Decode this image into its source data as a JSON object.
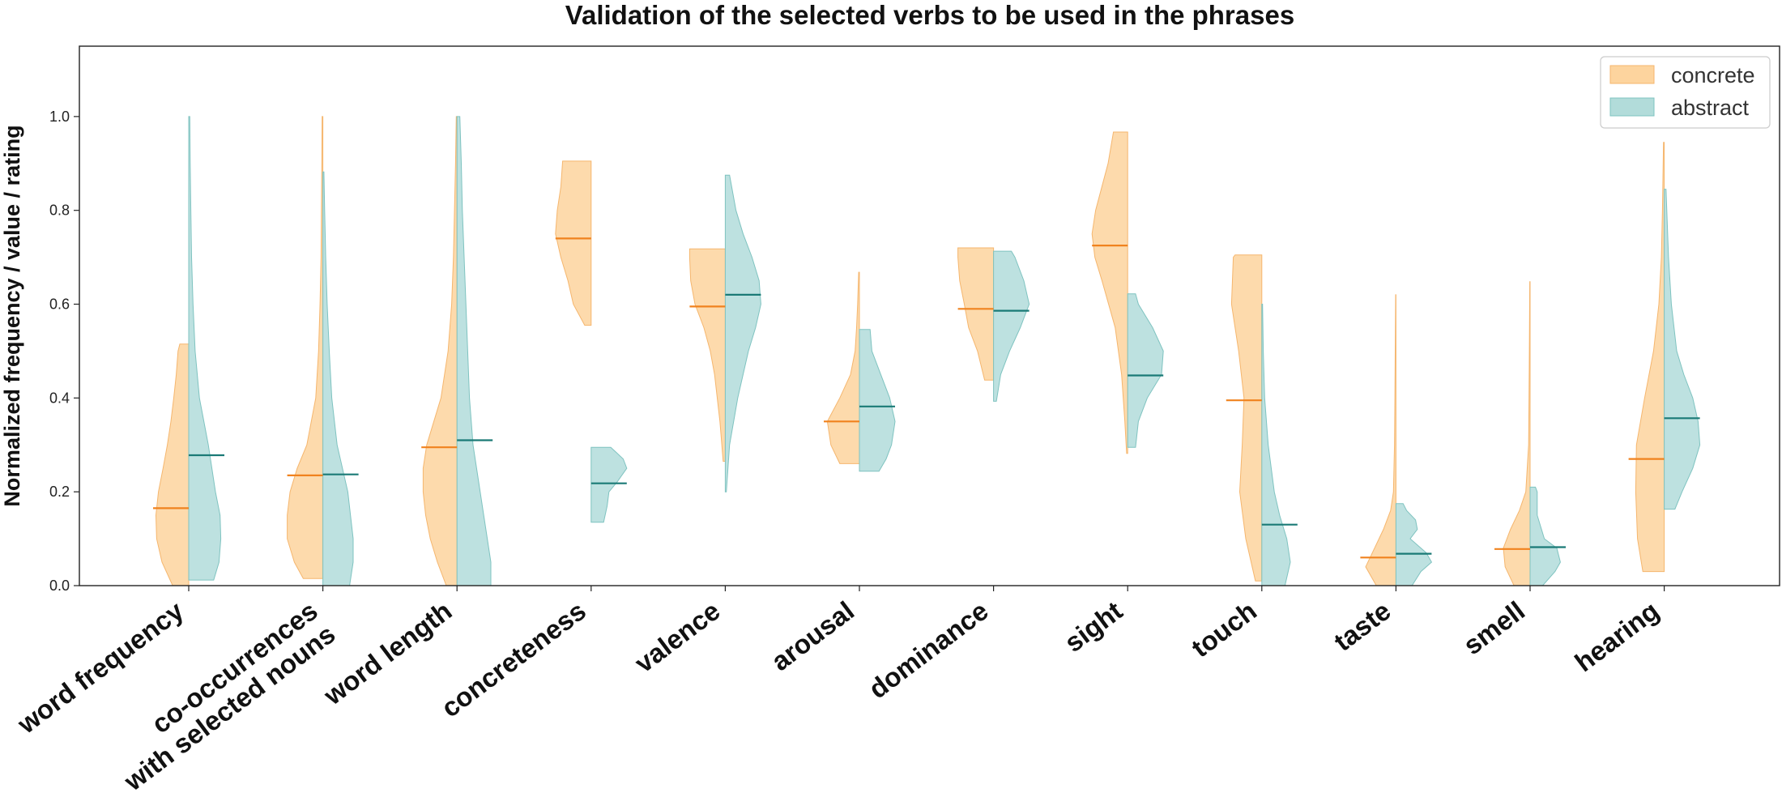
{
  "chart_data": {
    "type": "violin",
    "title": "Validation of the selected verbs to be used in the phrases",
    "xlabel": "",
    "ylabel": "Normalized frequency / value / rating",
    "ylim": [
      0,
      1.15
    ],
    "yticks": [
      0.0,
      0.2,
      0.4,
      0.6,
      0.8,
      1.0
    ],
    "ytick_labels": [
      "0.0",
      "0.2",
      "0.4",
      "0.6",
      "0.8",
      "1.0"
    ],
    "grid": false,
    "legend_position": "top-right",
    "categories": [
      "word frequency",
      "co-occurrences\nwith selected nouns",
      "word length",
      "concreteness",
      "valence",
      "arousal",
      "dominance",
      "sight",
      "touch",
      "taste",
      "smell",
      "hearing"
    ],
    "series": [
      {
        "name": "concrete",
        "color": "#FDD49E",
        "edge_color": "#F5B66E",
        "median_color": "#F0821E",
        "side": "left",
        "medians": [
          0.165,
          0.235,
          0.295,
          0.74,
          0.595,
          0.35,
          0.59,
          0.725,
          0.395,
          0.06,
          0.078,
          0.27
        ],
        "ranges": [
          [
            0.0,
            0.515
          ],
          [
            0.015,
            1.0
          ],
          [
            0.0,
            1.0
          ],
          [
            0.555,
            0.905
          ],
          [
            0.265,
            0.718
          ],
          [
            0.26,
            0.668
          ],
          [
            0.438,
            0.72
          ],
          [
            0.282,
            0.967
          ],
          [
            0.01,
            0.705
          ],
          [
            0.0,
            0.62
          ],
          [
            0.0,
            0.648
          ],
          [
            0.03,
            0.945
          ]
        ],
        "profiles": [
          [
            [
              0,
              0.45
            ],
            [
              0.05,
              0.75
            ],
            [
              0.1,
              0.9
            ],
            [
              0.15,
              0.92
            ],
            [
              0.2,
              0.85
            ],
            [
              0.25,
              0.72
            ],
            [
              0.3,
              0.6
            ],
            [
              0.35,
              0.5
            ],
            [
              0.4,
              0.42
            ],
            [
              0.45,
              0.35
            ],
            [
              0.5,
              0.3
            ],
            [
              0.515,
              0.25
            ]
          ],
          [
            [
              0.015,
              0.55
            ],
            [
              0.05,
              0.8
            ],
            [
              0.1,
              1.0
            ],
            [
              0.15,
              1.0
            ],
            [
              0.2,
              0.92
            ],
            [
              0.25,
              0.72
            ],
            [
              0.3,
              0.45
            ],
            [
              0.4,
              0.2
            ],
            [
              0.5,
              0.12
            ],
            [
              0.6,
              0.08
            ],
            [
              0.7,
              0.05
            ],
            [
              0.8,
              0.04
            ],
            [
              0.9,
              0.03
            ],
            [
              1.0,
              0.02
            ]
          ],
          [
            [
              0,
              0.3
            ],
            [
              0.05,
              0.55
            ],
            [
              0.1,
              0.75
            ],
            [
              0.15,
              0.88
            ],
            [
              0.2,
              0.95
            ],
            [
              0.25,
              0.95
            ],
            [
              0.3,
              0.85
            ],
            [
              0.35,
              0.65
            ],
            [
              0.4,
              0.45
            ],
            [
              0.5,
              0.25
            ],
            [
              0.6,
              0.15
            ],
            [
              0.7,
              0.1
            ],
            [
              0.8,
              0.07
            ],
            [
              0.9,
              0.04
            ],
            [
              1.0,
              0.02
            ]
          ],
          [
            [
              0.555,
              0.18
            ],
            [
              0.6,
              0.5
            ],
            [
              0.65,
              0.65
            ],
            [
              0.7,
              0.85
            ],
            [
              0.75,
              1.0
            ],
            [
              0.8,
              0.95
            ],
            [
              0.85,
              0.85
            ],
            [
              0.905,
              0.8
            ]
          ],
          [
            [
              0.265,
              0.06
            ],
            [
              0.35,
              0.15
            ],
            [
              0.45,
              0.3
            ],
            [
              0.5,
              0.42
            ],
            [
              0.55,
              0.6
            ],
            [
              0.6,
              0.85
            ],
            [
              0.65,
              0.97
            ],
            [
              0.7,
              1.0
            ],
            [
              0.718,
              1.0
            ]
          ],
          [
            [
              0.26,
              0.55
            ],
            [
              0.3,
              0.8
            ],
            [
              0.35,
              0.9
            ],
            [
              0.4,
              0.55
            ],
            [
              0.45,
              0.25
            ],
            [
              0.5,
              0.12
            ],
            [
              0.55,
              0.08
            ],
            [
              0.6,
              0.05
            ],
            [
              0.668,
              0.02
            ]
          ],
          [
            [
              0.438,
              0.25
            ],
            [
              0.5,
              0.45
            ],
            [
              0.55,
              0.7
            ],
            [
              0.6,
              0.82
            ],
            [
              0.65,
              0.95
            ],
            [
              0.7,
              1.0
            ],
            [
              0.72,
              1.0
            ]
          ],
          [
            [
              0.282,
              0.03
            ],
            [
              0.35,
              0.08
            ],
            [
              0.45,
              0.17
            ],
            [
              0.55,
              0.35
            ],
            [
              0.65,
              0.72
            ],
            [
              0.7,
              0.92
            ],
            [
              0.75,
              1.0
            ],
            [
              0.8,
              0.9
            ],
            [
              0.9,
              0.55
            ],
            [
              0.967,
              0.4
            ]
          ],
          [
            [
              0.01,
              0.18
            ],
            [
              0.1,
              0.45
            ],
            [
              0.2,
              0.62
            ],
            [
              0.3,
              0.55
            ],
            [
              0.4,
              0.5
            ],
            [
              0.5,
              0.65
            ],
            [
              0.6,
              0.85
            ],
            [
              0.7,
              0.8
            ],
            [
              0.705,
              0.75
            ]
          ],
          [
            [
              0,
              0.55
            ],
            [
              0.04,
              0.85
            ],
            [
              0.08,
              0.6
            ],
            [
              0.12,
              0.35
            ],
            [
              0.16,
              0.15
            ],
            [
              0.2,
              0.07
            ],
            [
              0.3,
              0.04
            ],
            [
              0.4,
              0.03
            ],
            [
              0.5,
              0.02
            ],
            [
              0.62,
              0.01
            ]
          ],
          [
            [
              0,
              0.45
            ],
            [
              0.04,
              0.7
            ],
            [
              0.08,
              0.75
            ],
            [
              0.12,
              0.55
            ],
            [
              0.16,
              0.3
            ],
            [
              0.2,
              0.12
            ],
            [
              0.3,
              0.04
            ],
            [
              0.4,
              0.03
            ],
            [
              0.5,
              0.02
            ],
            [
              0.648,
              0.01
            ]
          ],
          [
            [
              0.03,
              0.6
            ],
            [
              0.1,
              0.75
            ],
            [
              0.2,
              0.8
            ],
            [
              0.3,
              0.78
            ],
            [
              0.4,
              0.55
            ],
            [
              0.5,
              0.3
            ],
            [
              0.6,
              0.15
            ],
            [
              0.7,
              0.08
            ],
            [
              0.8,
              0.05
            ],
            [
              0.945,
              0.02
            ]
          ]
        ]
      },
      {
        "name": "abstract",
        "color": "#B2DCDA",
        "edge_color": "#7FC3C0",
        "median_color": "#1A7A76",
        "side": "right",
        "medians": [
          0.278,
          0.237,
          0.31,
          0.218,
          0.62,
          0.382,
          0.586,
          0.448,
          0.13,
          0.068,
          0.082,
          0.357
        ],
        "ranges": [
          [
            0.012,
            1.0
          ],
          [
            0.0,
            0.882
          ],
          [
            0.0,
            1.0
          ],
          [
            0.135,
            0.295
          ],
          [
            0.2,
            0.875
          ],
          [
            0.244,
            0.546
          ],
          [
            0.393,
            0.713
          ],
          [
            0.295,
            0.622
          ],
          [
            0.0,
            0.6
          ],
          [
            0.0,
            0.175
          ],
          [
            0.0,
            0.21
          ],
          [
            0.163,
            0.845
          ]
        ],
        "profiles": [
          [
            [
              0.012,
              0.7
            ],
            [
              0.05,
              0.85
            ],
            [
              0.1,
              0.9
            ],
            [
              0.15,
              0.88
            ],
            [
              0.2,
              0.75
            ],
            [
              0.3,
              0.55
            ],
            [
              0.4,
              0.3
            ],
            [
              0.5,
              0.18
            ],
            [
              0.6,
              0.12
            ],
            [
              0.7,
              0.08
            ],
            [
              0.8,
              0.06
            ],
            [
              0.9,
              0.04
            ],
            [
              1.0,
              0.03
            ]
          ],
          [
            [
              0,
              0.75
            ],
            [
              0.05,
              0.85
            ],
            [
              0.1,
              0.85
            ],
            [
              0.2,
              0.7
            ],
            [
              0.25,
              0.55
            ],
            [
              0.3,
              0.4
            ],
            [
              0.4,
              0.25
            ],
            [
              0.5,
              0.18
            ],
            [
              0.6,
              0.12
            ],
            [
              0.7,
              0.08
            ],
            [
              0.8,
              0.05
            ],
            [
              0.882,
              0.03
            ]
          ],
          [
            [
              0,
              0.95
            ],
            [
              0.05,
              0.95
            ],
            [
              0.1,
              0.85
            ],
            [
              0.2,
              0.65
            ],
            [
              0.3,
              0.45
            ],
            [
              0.4,
              0.35
            ],
            [
              0.5,
              0.3
            ],
            [
              0.6,
              0.25
            ],
            [
              0.7,
              0.2
            ],
            [
              0.8,
              0.15
            ],
            [
              0.9,
              0.12
            ],
            [
              1.0,
              0.08
            ]
          ],
          [
            [
              0.135,
              0.35
            ],
            [
              0.17,
              0.45
            ],
            [
              0.2,
              0.5
            ],
            [
              0.22,
              0.72
            ],
            [
              0.25,
              1.0
            ],
            [
              0.27,
              0.9
            ],
            [
              0.295,
              0.55
            ]
          ],
          [
            [
              0.2,
              0.03
            ],
            [
              0.3,
              0.12
            ],
            [
              0.4,
              0.35
            ],
            [
              0.5,
              0.65
            ],
            [
              0.55,
              0.85
            ],
            [
              0.6,
              1.0
            ],
            [
              0.65,
              0.95
            ],
            [
              0.7,
              0.75
            ],
            [
              0.75,
              0.5
            ],
            [
              0.8,
              0.3
            ],
            [
              0.875,
              0.12
            ]
          ],
          [
            [
              0.244,
              0.55
            ],
            [
              0.27,
              0.75
            ],
            [
              0.3,
              0.9
            ],
            [
              0.35,
              1.0
            ],
            [
              0.4,
              0.85
            ],
            [
              0.45,
              0.6
            ],
            [
              0.5,
              0.35
            ],
            [
              0.546,
              0.3
            ]
          ],
          [
            [
              0.393,
              0.08
            ],
            [
              0.45,
              0.2
            ],
            [
              0.5,
              0.45
            ],
            [
              0.55,
              0.75
            ],
            [
              0.6,
              1.0
            ],
            [
              0.65,
              0.85
            ],
            [
              0.7,
              0.6
            ],
            [
              0.713,
              0.5
            ]
          ],
          [
            [
              0.295,
              0.22
            ],
            [
              0.35,
              0.3
            ],
            [
              0.4,
              0.55
            ],
            [
              0.45,
              0.95
            ],
            [
              0.5,
              1.0
            ],
            [
              0.55,
              0.7
            ],
            [
              0.6,
              0.3
            ],
            [
              0.622,
              0.22
            ]
          ],
          [
            [
              0,
              0.65
            ],
            [
              0.05,
              0.8
            ],
            [
              0.1,
              0.7
            ],
            [
              0.15,
              0.5
            ],
            [
              0.2,
              0.35
            ],
            [
              0.3,
              0.18
            ],
            [
              0.4,
              0.08
            ],
            [
              0.5,
              0.04
            ],
            [
              0.6,
              0.02
            ]
          ],
          [
            [
              0,
              0.45
            ],
            [
              0.03,
              0.7
            ],
            [
              0.05,
              1.0
            ],
            [
              0.07,
              0.85
            ],
            [
              0.1,
              0.4
            ],
            [
              0.12,
              0.6
            ],
            [
              0.14,
              0.55
            ],
            [
              0.16,
              0.3
            ],
            [
              0.175,
              0.2
            ]
          ],
          [
            [
              0,
              0.35
            ],
            [
              0.03,
              0.7
            ],
            [
              0.05,
              0.85
            ],
            [
              0.08,
              0.75
            ],
            [
              0.1,
              0.4
            ],
            [
              0.15,
              0.2
            ],
            [
              0.2,
              0.2
            ],
            [
              0.21,
              0.15
            ]
          ],
          [
            [
              0.163,
              0.3
            ],
            [
              0.2,
              0.5
            ],
            [
              0.25,
              0.8
            ],
            [
              0.3,
              1.0
            ],
            [
              0.35,
              0.95
            ],
            [
              0.4,
              0.8
            ],
            [
              0.45,
              0.55
            ],
            [
              0.5,
              0.35
            ],
            [
              0.6,
              0.2
            ],
            [
              0.7,
              0.12
            ],
            [
              0.845,
              0.05
            ]
          ]
        ]
      }
    ]
  }
}
